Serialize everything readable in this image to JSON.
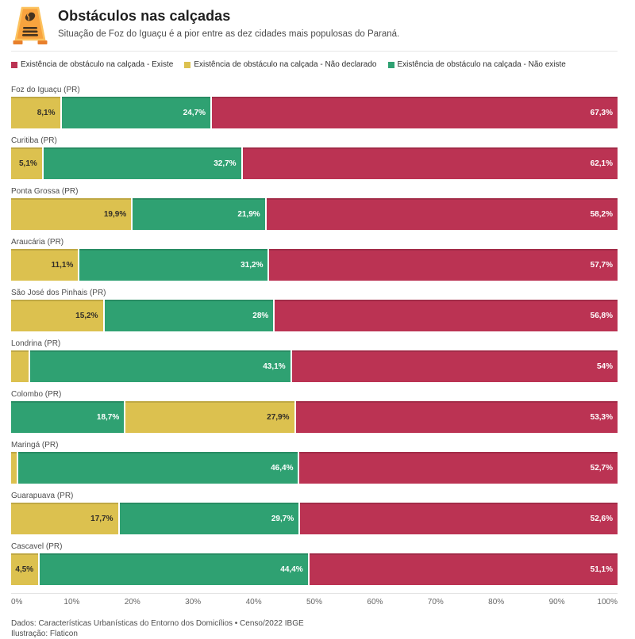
{
  "header": {
    "title": "Obstáculos nas calçadas",
    "subtitle": "Situação de Foz do Iguaçu é a pior entre as dez cidades mais populosas do Paraná."
  },
  "legend": [
    {
      "key": "existe",
      "label": "Existência de obstáculo na calçada - Existe",
      "color": "#bb3353"
    },
    {
      "key": "nao_declarado",
      "label": "Existência de obstáculo na calçada - Não declarado",
      "color": "#dcc14f"
    },
    {
      "key": "nao_existe",
      "label": "Existência de obstáculo na calçada - Não existe",
      "color": "#2fa172"
    }
  ],
  "chart_data": {
    "type": "bar",
    "orientation": "horizontal",
    "stacked": true,
    "unit": "%",
    "xlim": [
      0,
      100
    ],
    "grid": false,
    "legend_position": "top",
    "title": "Obstáculos nas calçadas",
    "subtitle": "Situação de Foz do Iguaçu é a pior entre as dez cidades mais populosas do Paraná.",
    "categories": [
      "Foz do Iguaçu (PR)",
      "Curitiba (PR)",
      "Ponta Grossa (PR)",
      "Araucária (PR)",
      "São José dos Pinhais (PR)",
      "Londrina (PR)",
      "Colombo (PR)",
      "Maringá (PR)",
      "Guarapuava (PR)",
      "Cascavel (PR)"
    ],
    "series_names": [
      "Existe",
      "Não declarado",
      "Não existe"
    ],
    "rows": [
      {
        "category": "Foz do Iguaçu (PR)",
        "segments": [
          {
            "series": "nao_declarado",
            "value": 8.1,
            "label": "8,1%"
          },
          {
            "series": "nao_existe",
            "value": 24.7,
            "label": "24,7%"
          },
          {
            "series": "existe",
            "value": 67.3,
            "label": "67,3%"
          }
        ]
      },
      {
        "category": "Curitiba (PR)",
        "segments": [
          {
            "series": "nao_declarado",
            "value": 5.1,
            "label": "5,1%"
          },
          {
            "series": "nao_existe",
            "value": 32.7,
            "label": "32,7%"
          },
          {
            "series": "existe",
            "value": 62.1,
            "label": "62,1%"
          }
        ]
      },
      {
        "category": "Ponta Grossa (PR)",
        "segments": [
          {
            "series": "nao_declarado",
            "value": 19.9,
            "label": "19,9%"
          },
          {
            "series": "nao_existe",
            "value": 21.9,
            "label": "21,9%"
          },
          {
            "series": "existe",
            "value": 58.2,
            "label": "58,2%"
          }
        ]
      },
      {
        "category": "Araucária (PR)",
        "segments": [
          {
            "series": "nao_declarado",
            "value": 11.1,
            "label": "11,1%"
          },
          {
            "series": "nao_existe",
            "value": 31.2,
            "label": "31,2%"
          },
          {
            "series": "existe",
            "value": 57.7,
            "label": "57,7%"
          }
        ]
      },
      {
        "category": "São José dos Pinhais (PR)",
        "segments": [
          {
            "series": "nao_declarado",
            "value": 15.2,
            "label": "15,2%"
          },
          {
            "series": "nao_existe",
            "value": 28,
            "label": "28%"
          },
          {
            "series": "existe",
            "value": 56.8,
            "label": "56,8%"
          }
        ]
      },
      {
        "category": "Londrina (PR)",
        "segments": [
          {
            "series": "nao_declarado",
            "value": 2.9,
            "label": ""
          },
          {
            "series": "nao_existe",
            "value": 43.1,
            "label": "43,1%"
          },
          {
            "series": "existe",
            "value": 54,
            "label": "54%"
          }
        ]
      },
      {
        "category": "Colombo (PR)",
        "segments": [
          {
            "series": "nao_existe",
            "value": 18.7,
            "label": "18,7%"
          },
          {
            "series": "nao_declarado",
            "value": 27.9,
            "label": "27,9%"
          },
          {
            "series": "existe",
            "value": 53.3,
            "label": "53,3%"
          }
        ]
      },
      {
        "category": "Maringá (PR)",
        "segments": [
          {
            "series": "nao_declarado",
            "value": 0.9,
            "label": ""
          },
          {
            "series": "nao_existe",
            "value": 46.4,
            "label": "46,4%"
          },
          {
            "series": "existe",
            "value": 52.7,
            "label": "52,7%"
          }
        ]
      },
      {
        "category": "Guarapuava (PR)",
        "segments": [
          {
            "series": "nao_declarado",
            "value": 17.7,
            "label": "17,7%"
          },
          {
            "series": "nao_existe",
            "value": 29.7,
            "label": "29,7%"
          },
          {
            "series": "existe",
            "value": 52.6,
            "label": "52,6%"
          }
        ]
      },
      {
        "category": "Cascavel (PR)",
        "segments": [
          {
            "series": "nao_declarado",
            "value": 4.5,
            "label": "4,5%"
          },
          {
            "series": "nao_existe",
            "value": 44.4,
            "label": "44,4%"
          },
          {
            "series": "existe",
            "value": 51.1,
            "label": "51,1%"
          }
        ]
      }
    ]
  },
  "axis": {
    "ticks": [
      "0%",
      "10%",
      "20%",
      "30%",
      "40%",
      "50%",
      "60%",
      "70%",
      "80%",
      "90%",
      "100%"
    ]
  },
  "footer": {
    "line1": "Dados: Características Urbanísticas do Entorno dos Domicílios • Censo/2022 IBGE",
    "line2": "Ilustração: Flaticon"
  }
}
